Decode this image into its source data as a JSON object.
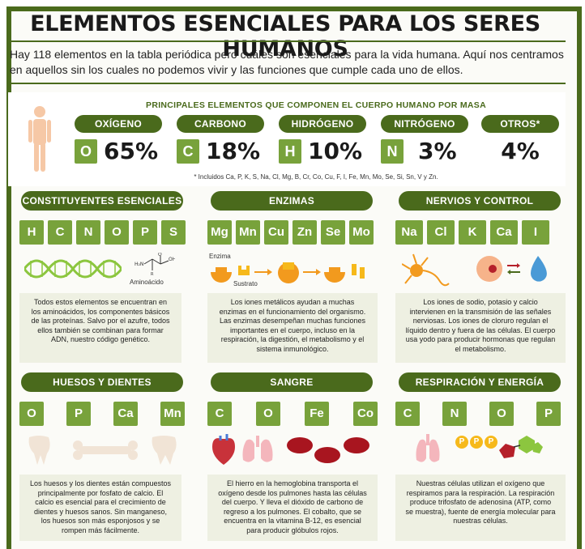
{
  "title": "ELEMENTOS ESENCIALES PARA LOS SERES HUMANOS",
  "intro": "Hay 118 elementos en la tabla periódica pero cuáles son esenciales para la vida humana. Aquí nos centramos en aquellos sin los cuales no podemos vivir y las funciones que cumple cada uno de ellos.",
  "mass": {
    "title": "PRINCIPALES ELEMENTOS QUE COMPONEN EL CUERPO HUMANO POR MASA",
    "elements": [
      {
        "name": "OXÍGENO",
        "symbol": "O",
        "percent": "65%"
      },
      {
        "name": "CARBONO",
        "symbol": "C",
        "percent": "18%"
      },
      {
        "name": "HIDRÓGENO",
        "symbol": "H",
        "percent": "10%"
      },
      {
        "name": "NITRÓGENO",
        "symbol": "N",
        "percent": "3%"
      },
      {
        "name": "OTROS*",
        "symbol": "",
        "percent": "4%"
      }
    ],
    "footnote": "* Incluidos Ca, P, K, S, Na, Cl, Mg, B, Cr, Co, Cu, F, I, Fe, Mn, Mo, Se, Si, Sn, V y Zn."
  },
  "sections": [
    {
      "heading": "CONSTITUYENTES ESENCIALES",
      "symbols": [
        "H",
        "C",
        "N",
        "O",
        "P",
        "S"
      ],
      "labels": [
        "Aminoácido"
      ],
      "text": "Todos estos elementos se encuentran en los aminoácidos, los componentes básicos de las proteínas. Salvo por el azufre, todos ellos también se combinan para formar ADN, nuestro código genético."
    },
    {
      "heading": "ENZIMAS",
      "symbols": [
        "Mg",
        "Mn",
        "Cu",
        "Zn",
        "Se",
        "Mo"
      ],
      "labels": [
        "Enzima",
        "Sustrato"
      ],
      "text": "Los iones metálicos ayudan a muchas enzimas en el funcionamiento del organismo. Las enzimas desempeñan muchas funciones importantes en el cuerpo, incluso en la respiración, la digestión, el metabolismo y el sistema inmunológico."
    },
    {
      "heading": "NERVIOS Y CONTROL",
      "symbols": [
        "Na",
        "Cl",
        "K",
        "Ca",
        "I"
      ],
      "labels": [],
      "text": "Los iones de sodio, potasio y calcio intervienen en la transmisión de las señales nerviosas. Los iones de cloruro regulan el líquido dentro y fuera de las células. El cuerpo usa yodo para producir hormonas que regulan el metabolismo."
    },
    {
      "heading": "HUESOS Y DIENTES",
      "symbols": [
        "O",
        "P",
        "Ca",
        "Mn"
      ],
      "labels": [],
      "text": "Los huesos y los dientes están compuestos principalmente por fosfato de calcio. El calcio es esencial para el crecimiento de dientes y huesos sanos. Sin manganeso, los huesos son más esponjosos y se rompen más fácilmente."
    },
    {
      "heading": "SANGRE",
      "symbols": [
        "C",
        "O",
        "Fe",
        "Co"
      ],
      "labels": [],
      "text": "El hierro en la hemoglobina transporta el oxígeno desde los pulmones hasta las células del cuerpo. Y lleva el dióxido de carbono de regreso a los pulmones. El cobalto, que se encuentra en la vitamina B-12, es esencial para producir glóbulos rojos."
    },
    {
      "heading": "RESPIRACIÓN Y ENERGÍA",
      "symbols": [
        "C",
        "N",
        "O",
        "P"
      ],
      "labels": [
        "P",
        "P",
        "P"
      ],
      "text": "Nuestras células utilizan el oxígeno que respiramos para la respiración. La respiración produce trifosfato de adenosina (ATP, como se muestra), fuente de energía molecular para nuestras células."
    }
  ],
  "colors": {
    "dark_green": "#4a6a1c",
    "tile_green": "#78a23b",
    "orange": "#f29a1e",
    "red": "#b5202a",
    "skin": "#f6c8a6"
  }
}
